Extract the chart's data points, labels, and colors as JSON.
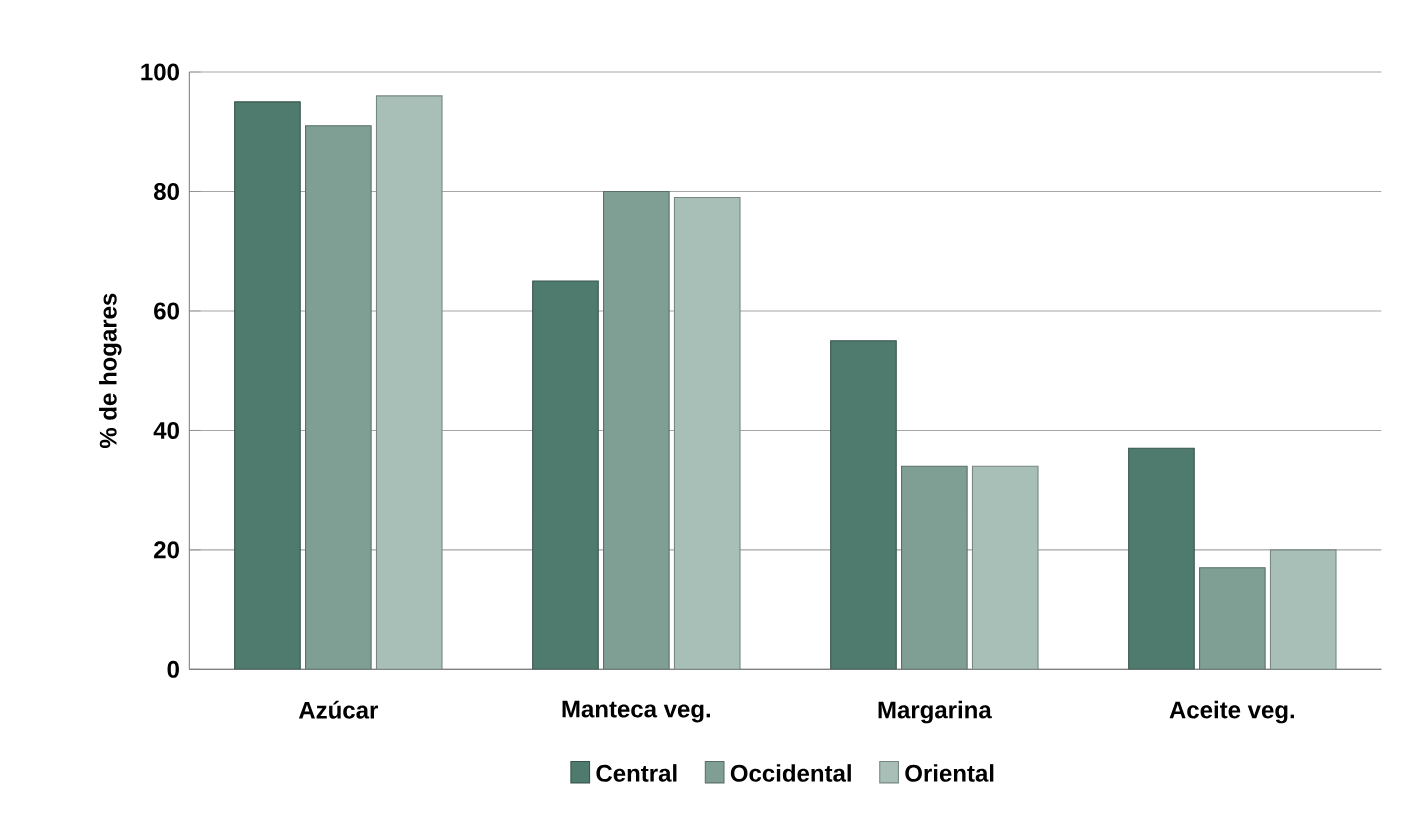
{
  "chart_data": {
    "type": "bar",
    "ylabel": "% de hogares",
    "categories": [
      "Azúcar",
      "Manteca veg.",
      "Margarina",
      "Aceite veg."
    ],
    "series": [
      {
        "name": "Central",
        "color": "#4f7a6e",
        "values": [
          95,
          65,
          55,
          37
        ]
      },
      {
        "name": "Occidental",
        "color": "#7f9e94",
        "values": [
          91,
          80,
          34,
          17
        ]
      },
      {
        "name": "Oriental",
        "color": "#a8bfb8",
        "values": [
          96,
          79,
          34,
          20
        ]
      }
    ],
    "ylim": [
      0,
      100
    ],
    "yticks": [
      0,
      20,
      40,
      60,
      80,
      100
    ],
    "grid": "y",
    "legend": "bottom"
  }
}
